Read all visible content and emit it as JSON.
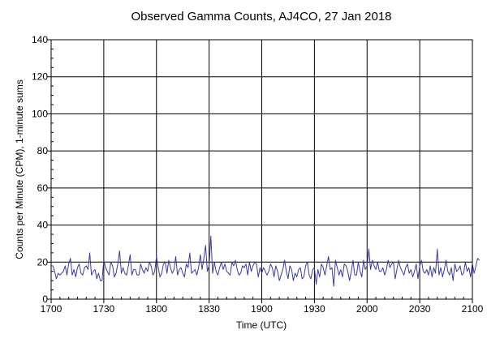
{
  "chart_data": {
    "type": "line",
    "title": "Observed Gamma Counts, AJ4CO, 27 Jan 2018",
    "xlabel": "Time (UTC)",
    "ylabel": "Counts per Minute (CPM), 1-minute sums",
    "xlim": [
      0,
      240
    ],
    "ylim": [
      0,
      140
    ],
    "x_ticks": [
      0,
      30,
      60,
      90,
      120,
      150,
      180,
      210,
      240
    ],
    "x_tick_labels": [
      "1700",
      "1730",
      "1800",
      "1830",
      "1900",
      "1930",
      "2000",
      "2030",
      "2100"
    ],
    "y_ticks": [
      0,
      20,
      40,
      60,
      80,
      100,
      120,
      140
    ],
    "y_tick_labels": [
      "0",
      "20",
      "40",
      "60",
      "80",
      "100",
      "120",
      "140"
    ],
    "grid": true,
    "legend": false,
    "colors": {
      "line": "#3a3aa0",
      "grid": "#000000"
    },
    "series": [
      {
        "x_start": 0,
        "x_step": 1,
        "values": [
          18,
          18,
          15,
          11,
          14,
          13,
          14,
          15,
          18,
          13,
          19,
          22,
          13,
          16,
          12,
          17,
          19,
          14,
          13,
          17,
          18,
          16,
          25,
          13,
          15,
          16,
          11,
          14,
          10,
          10,
          21,
          17,
          15,
          13,
          20,
          18,
          12,
          14,
          19,
          26,
          14,
          17,
          14,
          13,
          18,
          24,
          13,
          16,
          16,
          13,
          13,
          19,
          16,
          14,
          17,
          15,
          20,
          18,
          13,
          15,
          23,
          17,
          12,
          14,
          19,
          20,
          14,
          21,
          17,
          14,
          16,
          23,
          13,
          16,
          17,
          14,
          12,
          19,
          17,
          25,
          14,
          15,
          16,
          13,
          17,
          24,
          16,
          22,
          29,
          15,
          18,
          34,
          14,
          20,
          15,
          13,
          17,
          20,
          16,
          19,
          15,
          14,
          13,
          20,
          18,
          21,
          16,
          13,
          14,
          18,
          17,
          19,
          13,
          20,
          15,
          18,
          20,
          19,
          12,
          17,
          14,
          17,
          15,
          13,
          15,
          19,
          17,
          12,
          18,
          15,
          10,
          13,
          16,
          21,
          15,
          11,
          18,
          16,
          10,
          14,
          12,
          16,
          17,
          11,
          12,
          18,
          20,
          13,
          11,
          16,
          17,
          8,
          16,
          12,
          19,
          17,
          13,
          18,
          23,
          16,
          17,
          7,
          21,
          17,
          13,
          16,
          12,
          19,
          18,
          15,
          10,
          15,
          21,
          13,
          13,
          20,
          15,
          12,
          21,
          16,
          18,
          27,
          16,
          21,
          18,
          16,
          20,
          15,
          15,
          17,
          13,
          16,
          21,
          17,
          19,
          20,
          11,
          16,
          21,
          17,
          15,
          13,
          17,
          19,
          14,
          16,
          12,
          15,
          19,
          11,
          18,
          21,
          15,
          14,
          16,
          13,
          18,
          12,
          17,
          14,
          27,
          13,
          17,
          12,
          16,
          21,
          15,
          13,
          17,
          10,
          19,
          15,
          16,
          18,
          13,
          14,
          20,
          15,
          17,
          12,
          19,
          14,
          18,
          22,
          21
        ]
      }
    ]
  }
}
